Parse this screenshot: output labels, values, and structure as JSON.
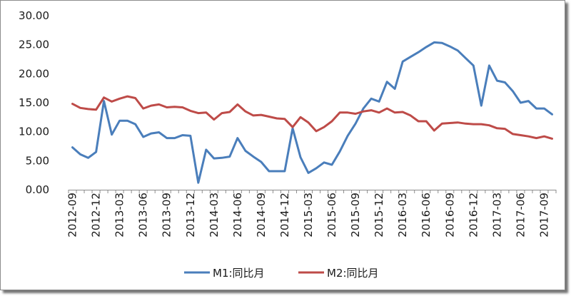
{
  "chart_data": {
    "type": "line",
    "title": "",
    "xlabel": "",
    "ylabel": "",
    "ylim": [
      0,
      30
    ],
    "y_ticks": [
      "0.00",
      "5.00",
      "10.00",
      "15.00",
      "20.00",
      "25.00",
      "30.00"
    ],
    "x": [
      "2012-09",
      "2012-10",
      "2012-11",
      "2012-12",
      "2013-01",
      "2013-02",
      "2013-03",
      "2013-04",
      "2013-05",
      "2013-06",
      "2013-07",
      "2013-08",
      "2013-09",
      "2013-10",
      "2013-11",
      "2013-12",
      "2014-01",
      "2014-02",
      "2014-03",
      "2014-04",
      "2014-05",
      "2014-06",
      "2014-07",
      "2014-08",
      "2014-09",
      "2014-10",
      "2014-11",
      "2014-12",
      "2015-01",
      "2015-02",
      "2015-03",
      "2015-04",
      "2015-05",
      "2015-06",
      "2015-07",
      "2015-08",
      "2015-09",
      "2015-10",
      "2015-11",
      "2015-12",
      "2016-01",
      "2016-02",
      "2016-03",
      "2016-04",
      "2016-05",
      "2016-06",
      "2016-07",
      "2016-08",
      "2016-09",
      "2016-10",
      "2016-11",
      "2016-12",
      "2017-01",
      "2017-02",
      "2017-03",
      "2017-04",
      "2017-05",
      "2017-06",
      "2017-07",
      "2017-08",
      "2017-09",
      "2017-10"
    ],
    "x_tick_labels": [
      "2012-09",
      "2012-12",
      "2013-03",
      "2013-06",
      "2013-09",
      "2013-12",
      "2014-03",
      "2014-06",
      "2014-09",
      "2014-12",
      "2015-03",
      "2015-06",
      "2015-09",
      "2015-12",
      "2016-03",
      "2016-06",
      "2016-09",
      "2016-12",
      "2017-03",
      "2017-06",
      "2017-09"
    ],
    "grid": false,
    "legend_position": "bottom",
    "series": [
      {
        "name": "M1:同比月",
        "color": "#4a7ebb",
        "values": [
          7.3,
          6.1,
          5.5,
          6.5,
          15.3,
          9.5,
          11.9,
          11.9,
          11.3,
          9.1,
          9.7,
          9.9,
          8.9,
          8.9,
          9.4,
          9.3,
          1.2,
          6.9,
          5.4,
          5.5,
          5.7,
          8.9,
          6.7,
          5.7,
          4.8,
          3.2,
          3.2,
          3.2,
          10.6,
          5.6,
          2.9,
          3.7,
          4.7,
          4.3,
          6.6,
          9.3,
          11.4,
          14.0,
          15.7,
          15.2,
          18.6,
          17.4,
          22.1,
          22.9,
          23.7,
          24.6,
          25.4,
          25.3,
          24.7,
          24.0,
          22.7,
          21.4,
          14.5,
          21.4,
          18.8,
          18.5,
          17.0,
          15.0,
          15.3,
          14.0,
          14.0,
          13.0
        ]
      },
      {
        "name": "M2:同比月",
        "color": "#be4b48",
        "values": [
          14.8,
          14.1,
          13.9,
          13.8,
          15.9,
          15.2,
          15.7,
          16.1,
          15.8,
          14.0,
          14.5,
          14.7,
          14.2,
          14.3,
          14.2,
          13.6,
          13.2,
          13.3,
          12.1,
          13.2,
          13.4,
          14.7,
          13.5,
          12.8,
          12.9,
          12.6,
          12.3,
          12.2,
          10.8,
          12.5,
          11.6,
          10.1,
          10.8,
          11.8,
          13.3,
          13.3,
          13.1,
          13.5,
          13.7,
          13.3,
          14.0,
          13.3,
          13.4,
          12.8,
          11.8,
          11.8,
          10.2,
          11.4,
          11.5,
          11.6,
          11.4,
          11.3,
          11.3,
          11.1,
          10.6,
          10.5,
          9.6,
          9.4,
          9.2,
          8.9,
          9.2,
          8.8
        ]
      }
    ]
  }
}
